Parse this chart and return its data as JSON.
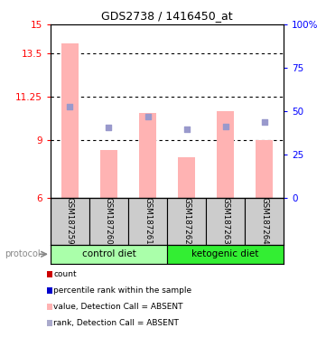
{
  "title": "GDS2738 / 1416450_at",
  "samples": [
    "GSM187259",
    "GSM187260",
    "GSM187261",
    "GSM187262",
    "GSM187263",
    "GSM187264"
  ],
  "bar_values": [
    14.0,
    8.5,
    10.4,
    8.1,
    10.5,
    9.0
  ],
  "dot_values": [
    10.75,
    9.65,
    10.2,
    9.55,
    9.7,
    9.95
  ],
  "ylim_left": [
    6,
    15
  ],
  "ylim_right": [
    0,
    100
  ],
  "yticks_left": [
    6,
    9,
    11.25,
    13.5,
    15
  ],
  "yticks_right": [
    0,
    25,
    50,
    75,
    100
  ],
  "ytick_labels_left": [
    "6",
    "9",
    "11.25",
    "13.5",
    "15"
  ],
  "ytick_labels_right": [
    "0",
    "25",
    "50",
    "75",
    "100%"
  ],
  "bar_color": "#ffb3b3",
  "dot_color": "#9999cc",
  "protocol_groups": [
    {
      "label": "control diet",
      "start": 0,
      "end": 3,
      "color": "#aaffaa"
    },
    {
      "label": "ketogenic diet",
      "start": 3,
      "end": 6,
      "color": "#33ee33"
    }
  ],
  "legend_items": [
    {
      "label": "count",
      "color": "#cc0000"
    },
    {
      "label": "percentile rank within the sample",
      "color": "#0000cc"
    },
    {
      "label": "value, Detection Call = ABSENT",
      "color": "#ffb3b3"
    },
    {
      "label": "rank, Detection Call = ABSENT",
      "color": "#aaaacc"
    }
  ],
  "protocol_label": "protocol",
  "background_color": "#ffffff",
  "label_area_color": "#cccccc"
}
